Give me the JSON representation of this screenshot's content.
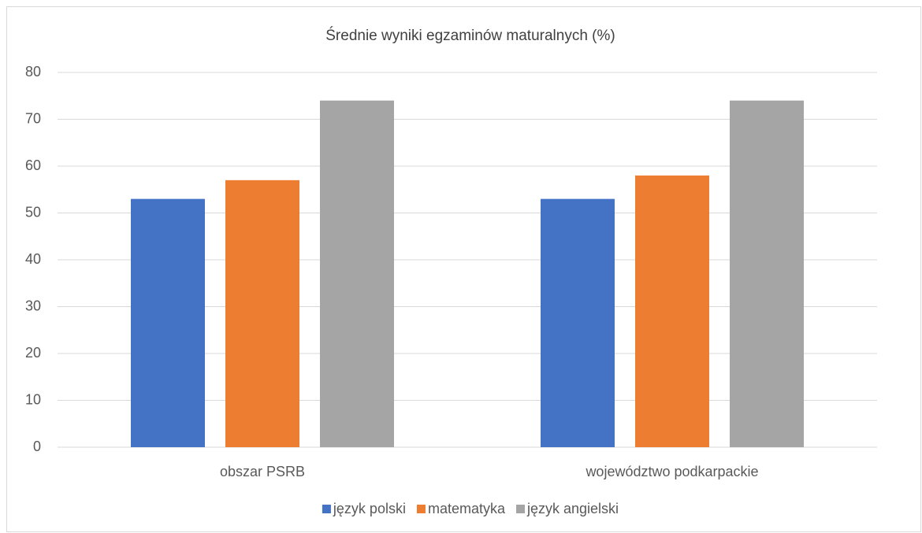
{
  "chart_data": {
    "type": "bar",
    "title": "Średnie wyniki egzaminów maturalnych (%)",
    "categories": [
      "obszar PSRB",
      "województwo podkarpackie"
    ],
    "series": [
      {
        "name": "język polski",
        "color": "#4472c4",
        "values": [
          53,
          53
        ]
      },
      {
        "name": "matematyka",
        "color": "#ed7d31",
        "values": [
          57,
          58
        ]
      },
      {
        "name": "język angielski",
        "color": "#a5a5a5",
        "values": [
          74,
          74
        ]
      }
    ],
    "ylim": [
      0,
      80
    ],
    "yticks": [
      0,
      10,
      20,
      30,
      40,
      50,
      60,
      70,
      80
    ],
    "grid": true,
    "legend": "bottom"
  }
}
